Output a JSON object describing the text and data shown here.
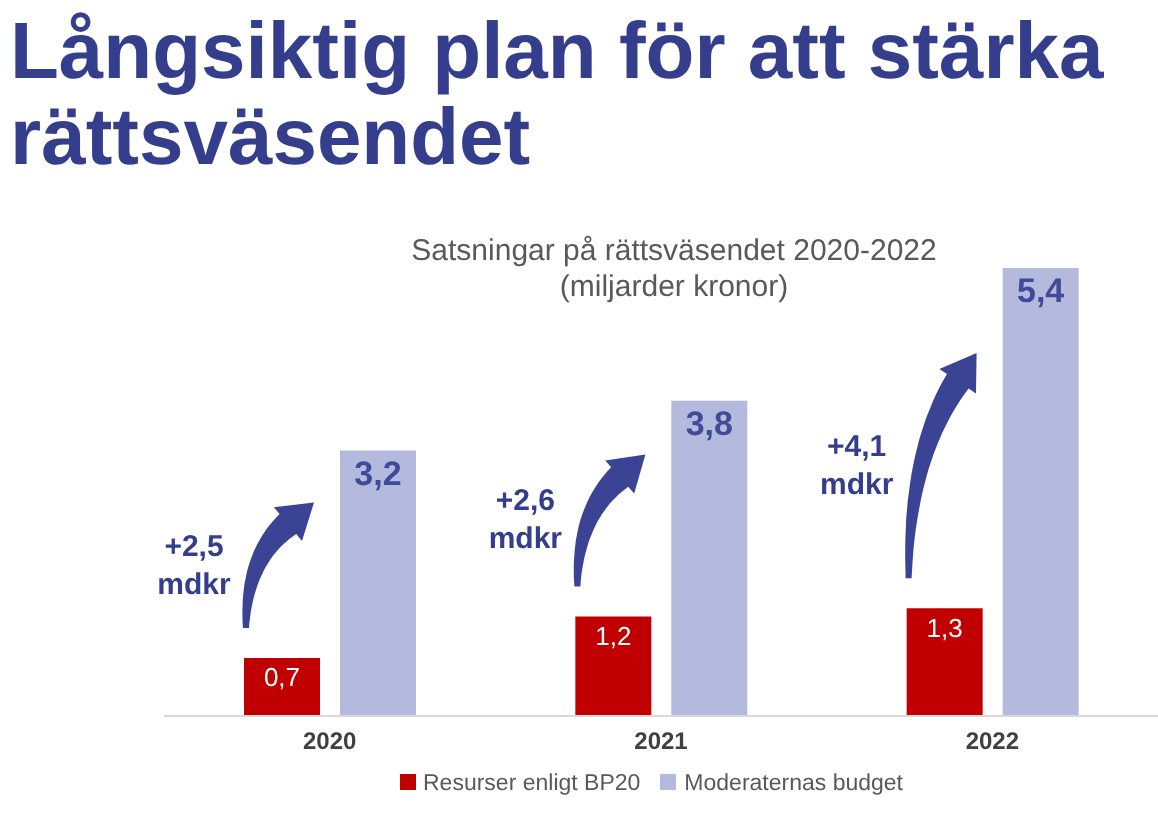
{
  "chart_data": {
    "type": "bar",
    "title": "Långsiktig plan för att stärka rättsväsendet",
    "subtitle": "Satsningar på rättsväsendet 2020-2022 (miljarder kronor)",
    "categories": [
      "2020",
      "2021",
      "2022"
    ],
    "series": [
      {
        "name": "Resurser enligt BP20",
        "color": "#c00000",
        "values": [
          0.7,
          1.2,
          1.3
        ],
        "value_labels": [
          "0,7",
          "1,2",
          "1,3"
        ]
      },
      {
        "name": "Moderaternas budget",
        "color": "#b4b9de",
        "values": [
          3.2,
          3.8,
          5.4
        ],
        "value_labels": [
          "3,2",
          "3,8",
          "5,4"
        ]
      }
    ],
    "legend": "bottom",
    "annotations": [
      "+2,5 mdkr",
      "+2,6 mdkr",
      "+4,1 mdkr"
    ]
  }
}
